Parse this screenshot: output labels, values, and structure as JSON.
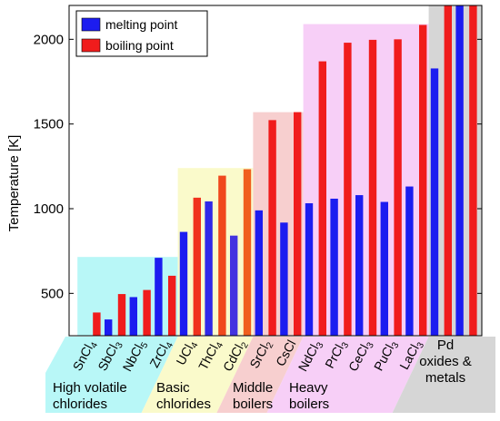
{
  "chart_data": {
    "type": "bar",
    "title": "",
    "ylabel": "Temperature [K]",
    "xlabel": "",
    "ylim": [
      250,
      2200
    ],
    "yticks": [
      500,
      1000,
      1500,
      2000
    ],
    "grid": false,
    "legend_position": "top-left",
    "categories": [
      "SnCl4",
      "SbCl3",
      "NbCl5",
      "ZrCl4",
      "UCl4",
      "ThCl4",
      "CdCl2",
      "SrCl2",
      "CsCl",
      "NdCl3",
      "PrCl3",
      "CeCl3",
      "PuCl3",
      "LaCl3",
      "Pd",
      "oxides & metals"
    ],
    "category_parts": [
      {
        "base": "SnCl",
        "sub": "4"
      },
      {
        "base": "SbCl",
        "sub": "3"
      },
      {
        "base": "NbCl",
        "sub": "5"
      },
      {
        "base": "ZrCl",
        "sub": "4"
      },
      {
        "base": "UCl",
        "sub": "4"
      },
      {
        "base": "ThCl",
        "sub": "4"
      },
      {
        "base": "CdCl",
        "sub": "2"
      },
      {
        "base": "SrCl",
        "sub": "2"
      },
      {
        "base": "CsCl",
        "sub": ""
      },
      {
        "base": "NdCl",
        "sub": "3"
      },
      {
        "base": "PrCl",
        "sub": "3"
      },
      {
        "base": "CeCl",
        "sub": "3"
      },
      {
        "base": "PuCl",
        "sub": "3"
      },
      {
        "base": "LaCl",
        "sub": "3"
      }
    ],
    "series": [
      {
        "name": "melting point",
        "color": "#1c1cf0",
        "values": [
          240,
          346,
          478,
          710,
          863,
          1043,
          841,
          990,
          918,
          1032,
          1059,
          1080,
          1040,
          1131,
          1828,
          2200
        ]
      },
      {
        "name": "boiling point",
        "color": "#f01c1c",
        "values": [
          387,
          496,
          520,
          604,
          1065,
          1195,
          1233,
          1523,
          1570,
          1870,
          1980,
          1997,
          2000,
          2085,
          2200,
          2200
        ]
      }
    ],
    "groups": [
      {
        "name": "High volatile chlorides",
        "lines": [
          "High volatile",
          "chlorides"
        ],
        "color": "#b8f7f7",
        "first": 0,
        "last": 3,
        "top": 715
      },
      {
        "name": "Basic chlorides",
        "lines": [
          "Basic",
          "chlorides"
        ],
        "color": "#fafacb",
        "first": 4,
        "last": 6,
        "top": 1240
      },
      {
        "name": "Middle boilers",
        "lines": [
          "Middle",
          "boilers"
        ],
        "color": "#f7cfcf",
        "first": 7,
        "last": 8,
        "top": 1570
      },
      {
        "name": "Heavy boilers",
        "lines": [
          "Heavy",
          "boilers"
        ],
        "color": "#f7cff7",
        "first": 9,
        "last": 13,
        "top": 2090
      },
      {
        "name": "Pd oxides & metals",
        "lines": [
          "Pd",
          "oxides &",
          "metals"
        ],
        "color": "#d6d6d6",
        "first": 14,
        "last": 15,
        "top": 2200
      }
    ],
    "gradient_colors": [
      "#1c1cf0",
      "#f01c1c",
      "#f0a020"
    ]
  }
}
